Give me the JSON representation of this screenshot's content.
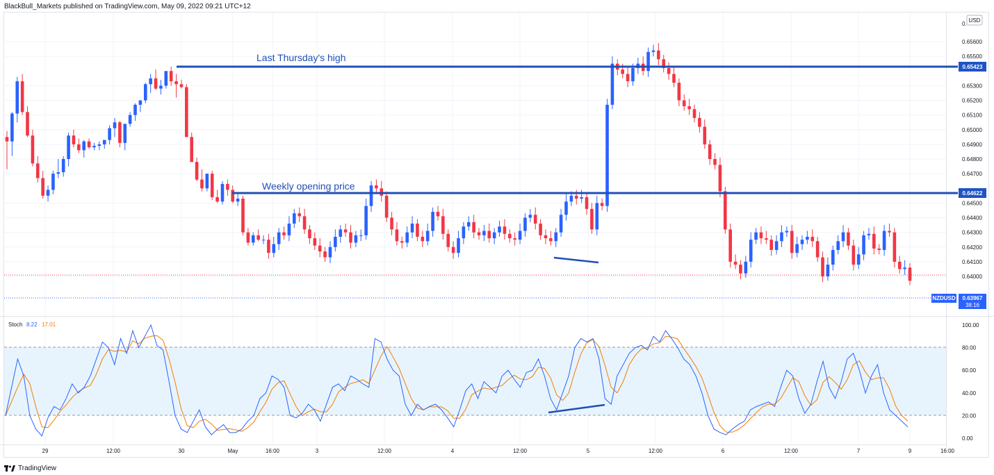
{
  "header": {
    "publisher_line": "BlackBull_Markets published on TradingView.com, May 09, 2022 09:21 UTC+12"
  },
  "footer": {
    "brand": "TradingView"
  },
  "colors": {
    "up": "#2962ff",
    "down": "#f23645",
    "level_line": "#1f4fb5",
    "stoch_k": "#2962ff",
    "stoch_d": "#f57c00",
    "band_fill": "#e3f2fd",
    "price_tag_bg": "#1e54c3"
  },
  "annotations": {
    "last_thursday_high": "Last Thursday's high",
    "weekly_open": "Weekly opening price"
  },
  "price_axis": {
    "currency_button": "USD",
    "ticks": [
      "0.65600",
      "0.65500",
      "0.65300",
      "0.65200",
      "0.65100",
      "0.65000",
      "0.64900",
      "0.64800",
      "0.64700",
      "0.64500",
      "0.64400",
      "0.64300",
      "0.64200",
      "0.64100",
      "0.64000"
    ],
    "top_label": "0.",
    "tag_high": "0.65423",
    "tag_open": "0.64622",
    "symbol": "NZDUSD",
    "last_price": "0.63967",
    "countdown": "38:16"
  },
  "stoch": {
    "label": "Stoch",
    "k_value": "8.22",
    "d_value": "17.01",
    "ticks": [
      "100.00",
      "80.00",
      "60.00",
      "40.00",
      "20.00",
      "0.00"
    ]
  },
  "time_axis": {
    "labels": [
      "29",
      "12:00",
      "30",
      "May",
      "16:00",
      "3",
      "12:00",
      "4",
      "12:00",
      "5",
      "12:00",
      "6",
      "12:00",
      "7",
      "9",
      "16:00"
    ]
  },
  "chart_data": {
    "type": "candlestick",
    "title": "NZDUSD",
    "ylim": [
      0.6393,
      0.6568
    ],
    "levels": [
      {
        "label": "Last Thursday's high",
        "value": 0.65423
      },
      {
        "label": "Weekly opening price",
        "value": 0.64622
      }
    ],
    "last_price": 0.63967,
    "candles_ohlc": [
      [
        0.6495,
        0.6499,
        0.6473,
        0.6492
      ],
      [
        0.6492,
        0.6512,
        0.6482,
        0.6511
      ],
      [
        0.6511,
        0.6536,
        0.6505,
        0.6533
      ],
      [
        0.6533,
        0.6538,
        0.651,
        0.6512
      ],
      [
        0.6512,
        0.6516,
        0.6495,
        0.6496
      ],
      [
        0.6496,
        0.65,
        0.6475,
        0.6477
      ],
      [
        0.6477,
        0.6482,
        0.6464,
        0.6467
      ],
      [
        0.6467,
        0.6472,
        0.6453,
        0.6455
      ],
      [
        0.6455,
        0.6462,
        0.6451,
        0.6459
      ],
      [
        0.6459,
        0.6472,
        0.6456,
        0.647
      ],
      [
        0.647,
        0.648,
        0.6467,
        0.6471
      ],
      [
        0.6471,
        0.6482,
        0.6468,
        0.648
      ],
      [
        0.648,
        0.6498,
        0.6475,
        0.6496
      ],
      [
        0.6496,
        0.65,
        0.6488,
        0.649
      ],
      [
        0.649,
        0.6494,
        0.6484,
        0.6486
      ],
      [
        0.6486,
        0.6493,
        0.6481,
        0.6492
      ],
      [
        0.6492,
        0.6494,
        0.6487,
        0.6488
      ],
      [
        0.6488,
        0.6491,
        0.6486,
        0.6489
      ],
      [
        0.6489,
        0.6492,
        0.6486,
        0.649
      ],
      [
        0.649,
        0.6493,
        0.6487,
        0.6493
      ],
      [
        0.6493,
        0.6503,
        0.649,
        0.6501
      ],
      [
        0.6501,
        0.6508,
        0.6495,
        0.6505
      ],
      [
        0.6505,
        0.6506,
        0.6488,
        0.6491
      ],
      [
        0.6491,
        0.6496,
        0.6486,
        0.6504
      ],
      [
        0.6504,
        0.6512,
        0.6502,
        0.651
      ],
      [
        0.651,
        0.6518,
        0.6506,
        0.6517
      ],
      [
        0.6517,
        0.652,
        0.6512,
        0.652
      ],
      [
        0.652,
        0.6532,
        0.6518,
        0.6531
      ],
      [
        0.6531,
        0.6538,
        0.6525,
        0.6535
      ],
      [
        0.6535,
        0.6541,
        0.6527,
        0.6528
      ],
      [
        0.6528,
        0.6534,
        0.6524,
        0.653
      ],
      [
        0.653,
        0.6537,
        0.6528,
        0.654
      ],
      [
        0.654,
        0.6543,
        0.653,
        0.6533
      ],
      [
        0.6533,
        0.6538,
        0.6522,
        0.6531
      ],
      [
        0.6531,
        0.6534,
        0.6528,
        0.6529
      ],
      [
        0.6529,
        0.6531,
        0.6495,
        0.6495
      ],
      [
        0.6495,
        0.6498,
        0.6478,
        0.6478
      ],
      [
        0.6478,
        0.6481,
        0.6465,
        0.6466
      ],
      [
        0.6466,
        0.6473,
        0.6458,
        0.646
      ],
      [
        0.646,
        0.647,
        0.6458,
        0.647
      ],
      [
        0.647,
        0.6472,
        0.6452,
        0.6454
      ],
      [
        0.6454,
        0.6459,
        0.645,
        0.6451
      ],
      [
        0.6451,
        0.6465,
        0.6449,
        0.6463
      ],
      [
        0.6463,
        0.6466,
        0.6455,
        0.6459
      ],
      [
        0.6459,
        0.6462,
        0.645,
        0.6451
      ],
      [
        0.6451,
        0.6456,
        0.6448,
        0.6453
      ],
      [
        0.6453,
        0.6455,
        0.6428,
        0.643
      ],
      [
        0.643,
        0.6433,
        0.6421,
        0.6423
      ],
      [
        0.6423,
        0.643,
        0.6421,
        0.6428
      ],
      [
        0.6428,
        0.6432,
        0.6424,
        0.6425
      ]
    ],
    "stoch_k": [
      20,
      45,
      70,
      55,
      20,
      8,
      2,
      18,
      28,
      25,
      35,
      48,
      40,
      45,
      55,
      70,
      85,
      80,
      65,
      88,
      75,
      95,
      80,
      90,
      100,
      82,
      78,
      50,
      20,
      8,
      5,
      15,
      25,
      10,
      3,
      8,
      12,
      5,
      5,
      8,
      15,
      20,
      35,
      40,
      55,
      52,
      45,
      20,
      18,
      22,
      30,
      25,
      15,
      30,
      45,
      48,
      42,
      55,
      52,
      48,
      45,
      88,
      85,
      70,
      60,
      55,
      30,
      20,
      30,
      25,
      28,
      30,
      25,
      18,
      10,
      25,
      42,
      48,
      35,
      50,
      45,
      40,
      55,
      60,
      52,
      45,
      58,
      60,
      70,
      55,
      35,
      25,
      40,
      55,
      80,
      88,
      85,
      88,
      70,
      35,
      30,
      55,
      65,
      75,
      80,
      82,
      78,
      90,
      85,
      95,
      88,
      80,
      70,
      65,
      55,
      40,
      20,
      8,
      5,
      3,
      8,
      12,
      15,
      25,
      28,
      30,
      32,
      28,
      45,
      60,
      55,
      35,
      22,
      30,
      50,
      68,
      45,
      35,
      50,
      70,
      75,
      60,
      40,
      55,
      65,
      40,
      25,
      20,
      15,
      10
    ]
  }
}
